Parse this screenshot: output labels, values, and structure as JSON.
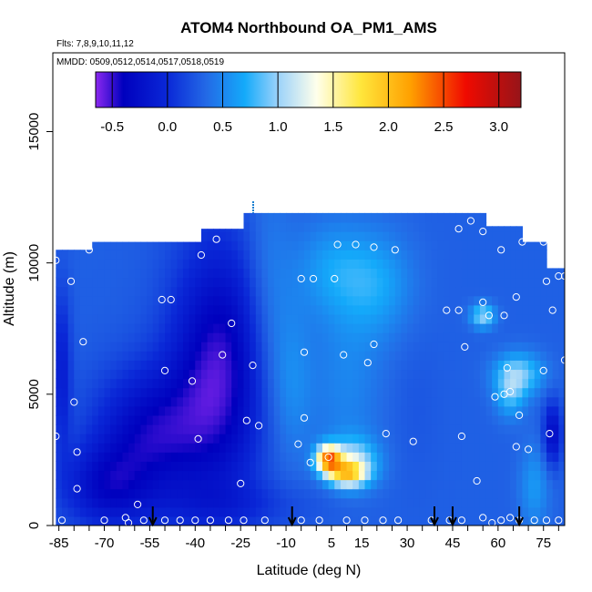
{
  "chart_data": {
    "type": "heatmap",
    "title": "ATOM4 Northbound OA_PM1_AMS",
    "subtitle_flights": "Flts: 7,8,9,10,11,12",
    "subtitle_dates": "MMDD: 0509,0512,0514,0517,0518,0519",
    "xlabel": "Latitude (deg N)",
    "ylabel": "Altitude (m)",
    "xlim": [
      -87,
      82
    ],
    "ylim": [
      0,
      18000
    ],
    "x_ticks": [
      -85,
      -70,
      -55,
      -40,
      -25,
      -10,
      5,
      15,
      30,
      45,
      60,
      75
    ],
    "y_ticks": [
      0,
      5000,
      10000,
      15000
    ],
    "colorbar": {
      "min": -0.65,
      "max": 3.2,
      "ticks": [
        -0.5,
        0.0,
        0.5,
        1.0,
        1.5,
        2.0,
        2.5,
        3.0
      ],
      "tick_labels": [
        "-0.5",
        "0.0",
        "0.5",
        "1.0",
        "1.5",
        "2.0",
        "2.5",
        "3.0"
      ]
    },
    "grid": false,
    "arrows_lat": [
      -54,
      -8,
      39,
      45,
      67
    ],
    "field_profile": [
      {
        "lat": -86,
        "top": 10500
      },
      {
        "lat": -76,
        "top": 10500
      },
      {
        "lat": -74,
        "top": 10800
      },
      {
        "lat": -40,
        "top": 10800
      },
      {
        "lat": -38,
        "top": 11300
      },
      {
        "lat": -25,
        "top": 11300
      },
      {
        "lat": -24,
        "top": 11900
      },
      {
        "lat": 53,
        "top": 11900
      },
      {
        "lat": 55,
        "top": 11400
      },
      {
        "lat": 65,
        "top": 11400
      },
      {
        "lat": 67,
        "top": 10800
      },
      {
        "lat": 74,
        "top": 10800
      },
      {
        "lat": 76,
        "top": 9800
      },
      {
        "lat": 80,
        "top": 9800
      },
      {
        "lat": 82,
        "top": 6000
      }
    ],
    "features": [
      {
        "lat": -32,
        "alt": 6000,
        "rlat": 16,
        "ralt": 4800,
        "value": -0.5
      },
      {
        "lat": -55,
        "alt": 3500,
        "rlat": 18,
        "ralt": 2500,
        "value": -0.35
      },
      {
        "lat": -70,
        "alt": 1500,
        "rlat": 14,
        "ralt": 1600,
        "value": -0.2
      },
      {
        "lat": -30,
        "alt": 800,
        "rlat": 30,
        "ralt": 900,
        "value": 0.1
      },
      {
        "lat": -16,
        "alt": 8500,
        "rlat": 8,
        "ralt": 4500,
        "value": 0.55
      },
      {
        "lat": -8,
        "alt": 5500,
        "rlat": 7,
        "ralt": 3000,
        "value": 0.55
      },
      {
        "lat": 5,
        "alt": 9800,
        "rlat": 12,
        "ralt": 1800,
        "value": 0.6
      },
      {
        "lat": 20,
        "alt": 9200,
        "rlat": 12,
        "ralt": 2000,
        "value": 0.65
      },
      {
        "lat": 10,
        "alt": 5500,
        "rlat": 12,
        "ralt": 3500,
        "value": 0.5
      },
      {
        "lat": 33,
        "alt": 4500,
        "rlat": 8,
        "ralt": 3000,
        "value": 0.25
      },
      {
        "lat": 12,
        "alt": 2400,
        "rlat": 8,
        "ralt": 900,
        "value": 1.1
      },
      {
        "lat": 4,
        "alt": 2550,
        "rlat": 4,
        "ralt": 500,
        "value": 2.1
      },
      {
        "lat": 10,
        "alt": 2000,
        "rlat": 6,
        "ralt": 450,
        "value": 1.4
      },
      {
        "lat": 55,
        "alt": 8000,
        "rlat": 4,
        "ralt": 450,
        "value": 1.0
      },
      {
        "lat": 67,
        "alt": 5800,
        "rlat": 8,
        "ralt": 800,
        "value": 0.9
      },
      {
        "lat": 64,
        "alt": 5000,
        "rlat": 5,
        "ralt": 900,
        "value": 0.75
      },
      {
        "lat": 72,
        "alt": 1500,
        "rlat": 5,
        "ralt": 1600,
        "value": 0.6
      },
      {
        "lat": 78,
        "alt": 3500,
        "rlat": 3,
        "ralt": 1200,
        "value": -0.3
      },
      {
        "lat": -84,
        "alt": 6000,
        "rlat": 3,
        "ralt": 3000,
        "value": -0.1
      }
    ],
    "sample_points": [
      [
        -86,
        10100
      ],
      [
        -75,
        10500
      ],
      [
        -81,
        9300
      ],
      [
        -77,
        7000
      ],
      [
        -80,
        4700
      ],
      [
        -86,
        3400
      ],
      [
        -79,
        2800
      ],
      [
        -79,
        1400
      ],
      [
        -59,
        800
      ],
      [
        -48,
        8600
      ],
      [
        -51,
        8600
      ],
      [
        -50,
        5900
      ],
      [
        -41,
        5500
      ],
      [
        -38,
        10300
      ],
      [
        -33,
        10900
      ],
      [
        -28,
        7700
      ],
      [
        -31,
        6500
      ],
      [
        -39,
        3300
      ],
      [
        -23,
        4000
      ],
      [
        -19,
        3800
      ],
      [
        -25,
        1600
      ],
      [
        -21,
        6100
      ],
      [
        -6,
        3100
      ],
      [
        -4,
        6600
      ],
      [
        -5,
        9400
      ],
      [
        -1,
        9400
      ],
      [
        4,
        2600
      ],
      [
        6,
        9400
      ],
      [
        7,
        10700
      ],
      [
        9,
        6500
      ],
      [
        13,
        10700
      ],
      [
        17,
        6200
      ],
      [
        19,
        6900
      ],
      [
        19,
        10600
      ],
      [
        23,
        3500
      ],
      [
        26,
        10500
      ],
      [
        32,
        3200
      ],
      [
        43,
        8200
      ],
      [
        47,
        8200
      ],
      [
        48,
        3400
      ],
      [
        49,
        6800
      ],
      [
        53,
        1700
      ],
      [
        55,
        11200
      ],
      [
        55,
        8500
      ],
      [
        57,
        8000
      ],
      [
        59,
        4900
      ],
      [
        61,
        10500
      ],
      [
        62,
        8000
      ],
      [
        62,
        5000
      ],
      [
        63,
        6000
      ],
      [
        64,
        5100
      ],
      [
        66,
        8700
      ],
      [
        66,
        3000
      ],
      [
        67,
        4200
      ],
      [
        68,
        10800
      ],
      [
        70,
        2900
      ],
      [
        75,
        10800
      ],
      [
        75,
        5900
      ],
      [
        76,
        9300
      ],
      [
        77,
        3500
      ],
      [
        78,
        8200
      ],
      [
        80,
        9500
      ],
      [
        82,
        6300
      ],
      [
        82,
        9500
      ],
      [
        51,
        11600
      ],
      [
        -4,
        4100
      ],
      [
        -2,
        2400
      ],
      [
        47,
        11300
      ],
      [
        -84,
        200
      ],
      [
        -70,
        200
      ],
      [
        -63,
        300
      ],
      [
        -57,
        200
      ],
      [
        -50,
        200
      ],
      [
        -45,
        200
      ],
      [
        -40,
        200
      ],
      [
        -35,
        200
      ],
      [
        -29,
        200
      ],
      [
        -24,
        200
      ],
      [
        -17,
        200
      ],
      [
        -5,
        200
      ],
      [
        1,
        200
      ],
      [
        10,
        200
      ],
      [
        16,
        200
      ],
      [
        22,
        200
      ],
      [
        27,
        200
      ],
      [
        38,
        200
      ],
      [
        44,
        200
      ],
      [
        48,
        200
      ],
      [
        55,
        300
      ],
      [
        61,
        200
      ],
      [
        64,
        300
      ],
      [
        67,
        200
      ],
      [
        72,
        200
      ],
      [
        76,
        200
      ],
      [
        80,
        200
      ],
      [
        -62,
        100
      ],
      [
        58,
        100
      ]
    ]
  }
}
